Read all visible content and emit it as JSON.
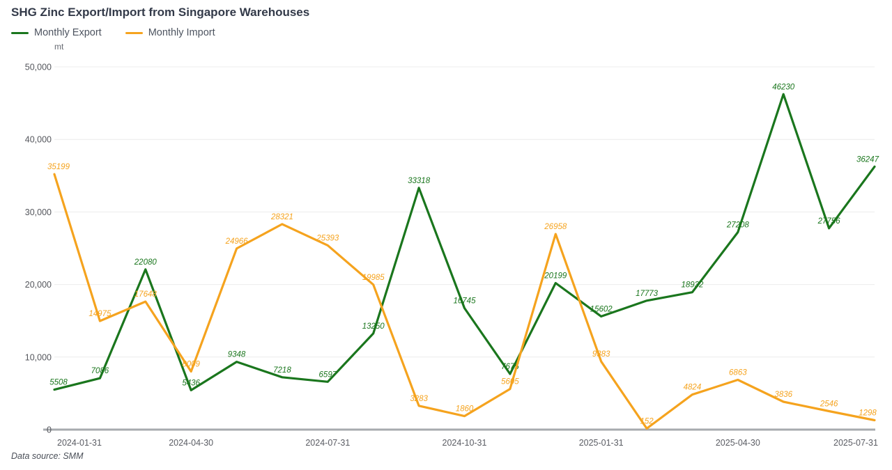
{
  "title": "SHG Zinc Export/Import from Singapore Warehouses",
  "legend": {
    "items": [
      {
        "label": "Monthly Export",
        "color": "#1a761d"
      },
      {
        "label": "Monthly Import",
        "color": "#f5a31e"
      }
    ]
  },
  "y_axis": {
    "unit": "mt",
    "tick_labels": [
      "50,000",
      "40,000",
      "30,000",
      "20,000",
      "10,000",
      "0"
    ],
    "tick_values": [
      50000,
      40000,
      30000,
      20000,
      10000,
      0
    ]
  },
  "footer": {
    "text": "Data source:  SMM"
  },
  "chart_data": {
    "type": "line",
    "n_points": 19,
    "x_tick_labels": [
      "2024-01-31",
      "2024-04-30",
      "2024-07-31",
      "2024-10-31",
      "2025-01-31",
      "2025-04-30",
      "2025-07-31"
    ],
    "x_tick_indices": [
      0,
      3,
      6,
      9,
      12,
      15,
      18
    ],
    "series": [
      {
        "name": "Monthly Export",
        "color": "#1a761d",
        "values": [
          5508,
          7086,
          22080,
          5436,
          9348,
          7218,
          6597,
          13250,
          33318,
          16745,
          7675,
          20199,
          15602,
          17773,
          18932,
          27208,
          46230,
          27756,
          36247
        ]
      },
      {
        "name": "Monthly Import",
        "color": "#f5a31e",
        "values": [
          35199,
          14975,
          17648,
          8009,
          24966,
          28321,
          25393,
          19985,
          3283,
          1860,
          5605,
          26958,
          9383,
          152,
          4824,
          6863,
          3836,
          2546,
          1298
        ]
      }
    ],
    "title": "SHG Zinc Export/Import from Singapore Warehouses",
    "xlabel": "",
    "ylabel": "mt",
    "ylim": [
      0,
      50000
    ],
    "grid": true,
    "legend_position": "top-left",
    "data_labels": true,
    "data_label_style": "italic"
  }
}
